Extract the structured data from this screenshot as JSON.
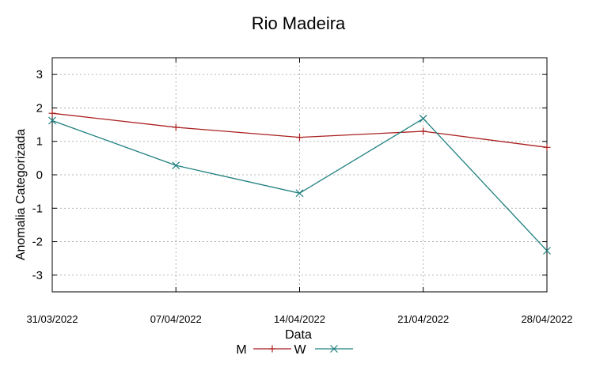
{
  "chart_data": {
    "type": "line",
    "title": "Rio Madeira",
    "xlabel": "Data",
    "ylabel": "Anomalia Categorizada",
    "categories": [
      "31/03/2022",
      "07/04/2022",
      "14/04/2022",
      "21/04/2022",
      "28/04/2022"
    ],
    "yticks": [
      "3",
      "2",
      "1",
      "0",
      "-1",
      "-2",
      "-3"
    ],
    "ylim": [
      -3.5,
      3.5
    ],
    "grid": true,
    "legend_position": "bottom-center",
    "series": [
      {
        "name": "M",
        "values": [
          1.84,
          1.42,
          1.12,
          1.3,
          0.82
        ],
        "color": "#aa1f1f",
        "marker": "plus"
      },
      {
        "name": "W",
        "values": [
          1.62,
          0.28,
          -0.55,
          1.68,
          -2.27
        ],
        "color": "#1f7f7f",
        "marker": "cross"
      }
    ]
  }
}
